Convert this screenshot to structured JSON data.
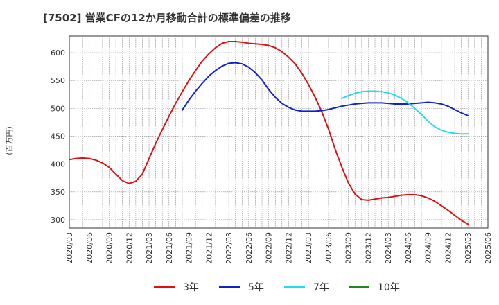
{
  "chart_data": {
    "type": "line",
    "title": "[7502]  営業CFの12か月移動合計の標準偏差の推移",
    "ylabel": "(百万円)",
    "xlabel": "",
    "ylim": [
      285,
      630
    ],
    "yticks": [
      300,
      350,
      400,
      450,
      500,
      550,
      600
    ],
    "x_range": [
      "2020-03",
      "2025-06"
    ],
    "xticks": [
      "2020/03",
      "2020/06",
      "2020/09",
      "2020/12",
      "2021/03",
      "2021/06",
      "2021/09",
      "2021/12",
      "2022/03",
      "2022/06",
      "2022/09",
      "2022/12",
      "2023/03",
      "2023/06",
      "2023/09",
      "2023/12",
      "2024/03",
      "2024/06",
      "2024/09",
      "2024/12",
      "2025/03",
      "2025/06"
    ],
    "grid": true,
    "legend_position": "bottom",
    "series": [
      {
        "name": "3年",
        "color": "#dd1111",
        "points": [
          [
            "2020-03",
            408
          ],
          [
            "2020-04",
            410
          ],
          [
            "2020-05",
            411
          ],
          [
            "2020-06",
            410
          ],
          [
            "2020-07",
            407
          ],
          [
            "2020-08",
            402
          ],
          [
            "2020-09",
            394
          ],
          [
            "2020-10",
            382
          ],
          [
            "2020-11",
            370
          ],
          [
            "2020-12",
            365
          ],
          [
            "2021-01",
            369
          ],
          [
            "2021-02",
            382
          ],
          [
            "2021-03",
            410
          ],
          [
            "2021-04",
            437
          ],
          [
            "2021-05",
            462
          ],
          [
            "2021-06",
            486
          ],
          [
            "2021-07",
            509
          ],
          [
            "2021-08",
            530
          ],
          [
            "2021-09",
            550
          ],
          [
            "2021-10",
            568
          ],
          [
            "2021-11",
            585
          ],
          [
            "2021-12",
            598
          ],
          [
            "2022-01",
            609
          ],
          [
            "2022-02",
            617
          ],
          [
            "2022-03",
            620
          ],
          [
            "2022-04",
            620
          ],
          [
            "2022-05",
            619
          ],
          [
            "2022-06",
            617
          ],
          [
            "2022-07",
            616
          ],
          [
            "2022-08",
            615
          ],
          [
            "2022-09",
            613
          ],
          [
            "2022-10",
            609
          ],
          [
            "2022-11",
            602
          ],
          [
            "2022-12",
            592
          ],
          [
            "2023-01",
            580
          ],
          [
            "2023-02",
            563
          ],
          [
            "2023-03",
            543
          ],
          [
            "2023-04",
            520
          ],
          [
            "2023-05",
            494
          ],
          [
            "2023-06",
            463
          ],
          [
            "2023-07",
            427
          ],
          [
            "2023-08",
            395
          ],
          [
            "2023-09",
            366
          ],
          [
            "2023-10",
            346
          ],
          [
            "2023-11",
            336
          ],
          [
            "2023-12",
            335
          ],
          [
            "2024-01",
            337
          ],
          [
            "2024-02",
            339
          ],
          [
            "2024-03",
            340
          ],
          [
            "2024-04",
            342
          ],
          [
            "2024-05",
            344
          ],
          [
            "2024-06",
            345
          ],
          [
            "2024-07",
            345
          ],
          [
            "2024-08",
            343
          ],
          [
            "2024-09",
            339
          ],
          [
            "2024-10",
            333
          ],
          [
            "2024-11",
            325
          ],
          [
            "2024-12",
            317
          ],
          [
            "2025-01",
            308
          ],
          [
            "2025-02",
            299
          ],
          [
            "2025-03",
            292
          ]
        ]
      },
      {
        "name": "5年",
        "color": "#1122cc",
        "points": [
          [
            "2021-08",
            497
          ],
          [
            "2021-09",
            515
          ],
          [
            "2021-10",
            531
          ],
          [
            "2021-11",
            545
          ],
          [
            "2021-12",
            558
          ],
          [
            "2022-01",
            568
          ],
          [
            "2022-02",
            576
          ],
          [
            "2022-03",
            581
          ],
          [
            "2022-04",
            582
          ],
          [
            "2022-05",
            580
          ],
          [
            "2022-06",
            574
          ],
          [
            "2022-07",
            564
          ],
          [
            "2022-08",
            551
          ],
          [
            "2022-09",
            534
          ],
          [
            "2022-10",
            520
          ],
          [
            "2022-11",
            509
          ],
          [
            "2022-12",
            502
          ],
          [
            "2023-01",
            497
          ],
          [
            "2023-02",
            495
          ],
          [
            "2023-03",
            495
          ],
          [
            "2023-04",
            495
          ],
          [
            "2023-05",
            496
          ],
          [
            "2023-06",
            498
          ],
          [
            "2023-07",
            501
          ],
          [
            "2023-08",
            504
          ],
          [
            "2023-09",
            506
          ],
          [
            "2023-10",
            508
          ],
          [
            "2023-11",
            509
          ],
          [
            "2023-12",
            510
          ],
          [
            "2024-01",
            510
          ],
          [
            "2024-02",
            510
          ],
          [
            "2024-03",
            509
          ],
          [
            "2024-04",
            508
          ],
          [
            "2024-05",
            508
          ],
          [
            "2024-06",
            508
          ],
          [
            "2024-07",
            509
          ],
          [
            "2024-08",
            510
          ],
          [
            "2024-09",
            511
          ],
          [
            "2024-10",
            510
          ],
          [
            "2024-11",
            508
          ],
          [
            "2024-12",
            504
          ],
          [
            "2025-01",
            498
          ],
          [
            "2025-02",
            492
          ],
          [
            "2025-03",
            487
          ]
        ]
      },
      {
        "name": "7年",
        "color": "#22ddee",
        "points": [
          [
            "2023-08",
            518
          ],
          [
            "2023-09",
            523
          ],
          [
            "2023-10",
            527
          ],
          [
            "2023-11",
            530
          ],
          [
            "2023-12",
            531
          ],
          [
            "2024-01",
            531
          ],
          [
            "2024-02",
            530
          ],
          [
            "2024-03",
            528
          ],
          [
            "2024-04",
            524
          ],
          [
            "2024-05",
            518
          ],
          [
            "2024-06",
            510
          ],
          [
            "2024-07",
            500
          ],
          [
            "2024-08",
            489
          ],
          [
            "2024-09",
            477
          ],
          [
            "2024-10",
            467
          ],
          [
            "2024-11",
            461
          ],
          [
            "2024-12",
            457
          ],
          [
            "2025-01",
            455
          ],
          [
            "2025-02",
            454
          ],
          [
            "2025-03",
            454
          ]
        ]
      },
      {
        "name": "10年",
        "color": "#228822",
        "points": []
      }
    ]
  }
}
